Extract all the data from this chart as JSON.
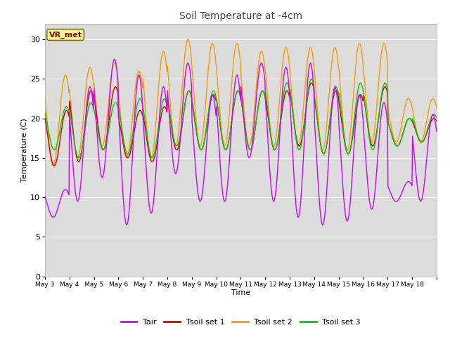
{
  "title": "Soil Temperature at -4cm",
  "xlabel": "Time",
  "ylabel": "Temperature (C)",
  "ylim": [
    0,
    32
  ],
  "yticks": [
    0,
    5,
    10,
    15,
    20,
    25,
    30
  ],
  "bg_color": "#dcdcdc",
  "fig_color": "#ffffff",
  "annotation_text": "VR_met",
  "annotation_bg": "#ffff99",
  "annotation_border": "#8B6914",
  "line_colors": {
    "Tair": "#cc00ff",
    "Tsoil set 1": "#cc0000",
    "Tsoil set 2": "#ff9900",
    "Tsoil set 3": "#00cc00"
  },
  "x_tick_labels": [
    "May 3",
    "May 4",
    "May 5",
    "May 6",
    "May 7",
    "May 8",
    "May 9",
    "May 10",
    "May 11",
    "May 12",
    "May 13",
    "May 14",
    "May 15",
    "May 16",
    "May 17",
    "May 18"
  ],
  "n_days": 16,
  "tair_params": {
    "daily_min": [
      7.5,
      9.5,
      12.5,
      6.5,
      8.0,
      13.0,
      9.5,
      9.5,
      15.0,
      9.5,
      7.5,
      6.5,
      7.0,
      8.5,
      9.5,
      9.5
    ],
    "daily_max": [
      11.0,
      24.0,
      27.5,
      25.5,
      24.0,
      27.0,
      23.0,
      25.5,
      27.0,
      26.5,
      27.0,
      24.0,
      23.0,
      22.0,
      12.0,
      20.5
    ]
  },
  "tsoil1_params": {
    "daily_min": [
      14.0,
      14.5,
      16.0,
      15.0,
      14.5,
      16.0,
      16.0,
      16.0,
      16.0,
      16.0,
      16.5,
      15.5,
      15.5,
      16.5,
      16.5,
      17.0
    ],
    "daily_max": [
      21.0,
      23.5,
      24.0,
      21.0,
      21.5,
      23.5,
      23.0,
      23.5,
      23.5,
      23.5,
      24.5,
      23.5,
      23.0,
      24.0,
      20.0,
      20.0
    ]
  },
  "tsoil2_params": {
    "daily_min": [
      14.0,
      15.0,
      16.5,
      15.0,
      15.0,
      16.5,
      16.5,
      16.5,
      16.5,
      16.5,
      16.5,
      16.0,
      16.0,
      17.0,
      17.0,
      17.0
    ],
    "daily_max": [
      25.5,
      26.5,
      27.0,
      26.0,
      28.5,
      30.0,
      29.5,
      29.5,
      28.5,
      29.0,
      29.0,
      29.0,
      29.5,
      29.5,
      22.5,
      22.5
    ]
  },
  "tsoil3_params": {
    "daily_min": [
      16.0,
      15.0,
      16.0,
      15.5,
      15.0,
      16.5,
      16.0,
      16.0,
      16.0,
      16.0,
      16.0,
      15.5,
      15.5,
      16.0,
      16.5,
      17.0
    ],
    "daily_max": [
      21.5,
      22.0,
      22.0,
      22.5,
      22.5,
      23.5,
      23.5,
      23.5,
      23.5,
      24.5,
      25.0,
      24.0,
      24.5,
      24.5,
      20.0,
      20.5
    ]
  }
}
